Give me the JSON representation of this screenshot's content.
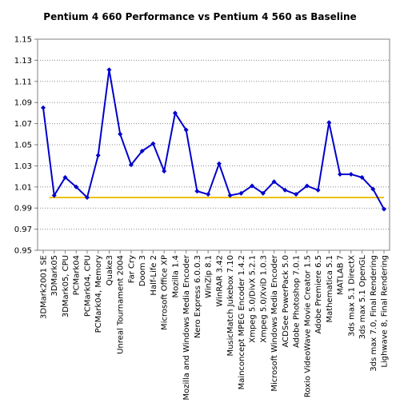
{
  "chart_data": {
    "type": "line",
    "title": "Pentium 4 660 Performance vs Pentium 4 560 as Baseline",
    "xlabel": "",
    "ylabel": "",
    "ylim": [
      0.95,
      1.15
    ],
    "yticks": [
      "0.95",
      "0.97",
      "0.99",
      "1.01",
      "1.03",
      "1.05",
      "1.07",
      "1.09",
      "1.11",
      "1.13",
      "1.15"
    ],
    "grid": true,
    "legend": "none",
    "categories": [
      "3DMark2001 SE",
      "3DMark05",
      "3DMark05, CPU",
      "PCMark04",
      "PCMark04, CPU",
      "PCMark04, Memory",
      "Quake3",
      "Unreal Tournament 2004",
      "Far Cry",
      "Doom 3",
      "Half-Life 2",
      "Microsoft Office XP",
      "Mozilla 1.4",
      "Mozilla and Windows Media Encoder",
      "Nero Express 6.0.0.3",
      "WinZip 8.1",
      "WinRAR 3.42",
      "MusicMatch Jukebox 7.10",
      "Mainconcept MPEG Encoder 1.4.2",
      "Xmpeg 5.0/DivX 5.2.1",
      "Xmpeg 5.0/XviD 1.0.3",
      "Microsoft Windows Media Encoder",
      "ACDSee PowerPack 5.0",
      "Adobe Photoshop 7.0.1",
      "Roxio VideoWave Movie Creator 1.5",
      "Adobe Premiere 6.5",
      "Mathematica 5.1",
      "MATLAB 7",
      "3ds max 5.1 DirectX",
      "3ds max 5.1 OpenGL",
      "3ds max 7.0, Final Rendering",
      "Lighwave 8, Final Rendering"
    ],
    "series": [
      {
        "values": [
          1.085,
          1.002,
          1.019,
          1.01,
          1.0,
          1.04,
          1.121,
          1.06,
          1.031,
          1.044,
          1.051,
          1.025,
          1.08,
          1.064,
          1.006,
          1.003,
          1.032,
          1.002,
          1.004,
          1.011,
          1.004,
          1.015,
          1.007,
          1.003,
          1.011,
          1.007,
          1.071,
          1.022,
          1.022,
          1.019,
          1.008,
          0.989
        ],
        "color": "#0000cc"
      }
    ],
    "baseline": {
      "value": 1.0,
      "color": "#f0c000"
    }
  }
}
